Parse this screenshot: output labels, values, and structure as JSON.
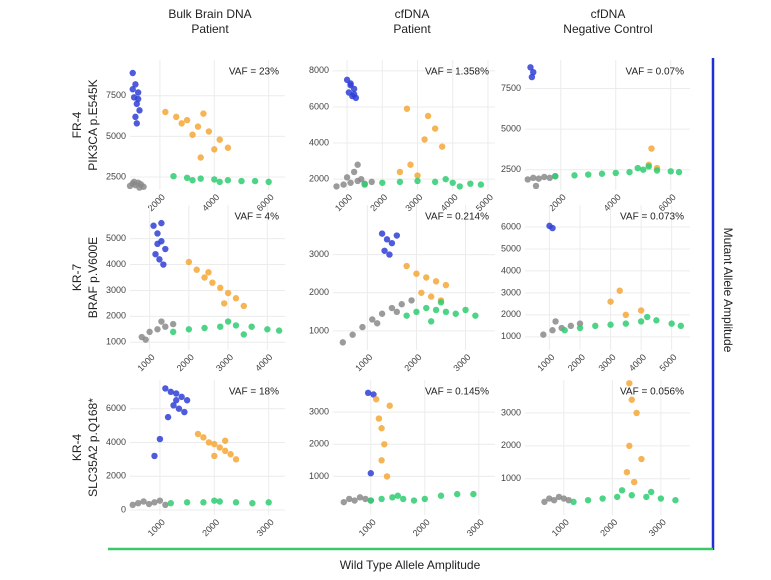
{
  "column_titles": [
    [
      "Bulk Brain DNA",
      "Patient"
    ],
    [
      "cfDNA",
      "Patient"
    ],
    [
      "cfDNA",
      "Negative Control"
    ]
  ],
  "row_labels": [
    [
      "FR-4",
      "PIK3CA p.E545K"
    ],
    [
      "KR-7",
      "BRAF p.V600E"
    ],
    [
      "KR-4",
      "SLC35A2 p.Q168*"
    ]
  ],
  "x_label": "Wild Type Allele Amplitude",
  "y_label": "Mutant Allele Amplitude",
  "chart_data": [
    {
      "type": "scatter",
      "annotation": "VAF = 23%",
      "grid": true,
      "xlim": [
        900,
        6600
      ],
      "xticks": [
        2000,
        4000,
        6000
      ],
      "ylim": [
        1700,
        9700
      ],
      "yticks": [
        2500,
        5000,
        7500
      ],
      "series": [
        {
          "color": "#2f3fd6",
          "x": [
            1000,
            1100,
            1200,
            1050,
            1150,
            1250,
            1100,
            1000,
            1200,
            1150
          ],
          "values": [
            8900,
            8200,
            7700,
            7400,
            7000,
            6600,
            6200,
            7900,
            7300,
            5800
          ]
        },
        {
          "color": "#f4a736",
          "x": [
            2200,
            2600,
            3000,
            3400,
            3800,
            4200,
            4500,
            3200,
            2800,
            3600,
            4000,
            3500
          ],
          "values": [
            6500,
            6200,
            6000,
            5600,
            5300,
            4800,
            4300,
            5100,
            5800,
            6400,
            4200,
            3700
          ]
        },
        {
          "color": "#8a8a8a",
          "x": [
            900,
            1000,
            1100,
            1200,
            1300,
            1400,
            1050,
            1250
          ],
          "values": [
            1950,
            2100,
            2000,
            2150,
            2050,
            1900,
            2200,
            1850
          ]
        },
        {
          "color": "#2ecc71",
          "x": [
            2500,
            3000,
            3500,
            4000,
            4500,
            5000,
            5500,
            6000,
            3200,
            4200
          ],
          "values": [
            2550,
            2450,
            2400,
            2350,
            2300,
            2250,
            2250,
            2200,
            2300,
            2200
          ]
        }
      ]
    },
    {
      "type": "scatter",
      "annotation": "VAF = 1.358%",
      "grid": true,
      "xlim": [
        600,
        5200
      ],
      "xticks": [
        1000,
        2000,
        3000,
        4000,
        5000
      ],
      "ylim": [
        1400,
        8600
      ],
      "yticks": [
        2000,
        4000,
        6000,
        8000
      ],
      "series": [
        {
          "color": "#2f3fd6",
          "x": [
            1000,
            1100,
            1200,
            1050,
            1150,
            1250,
            1100,
            1200
          ],
          "values": [
            7500,
            7200,
            7000,
            6800,
            6600,
            6500,
            7300,
            6700
          ]
        },
        {
          "color": "#f4a736",
          "x": [
            2700,
            3300,
            3500,
            3200,
            3700,
            2800,
            2500,
            3000
          ],
          "values": [
            5900,
            5500,
            4800,
            4200,
            3800,
            2800,
            2400,
            2200
          ]
        },
        {
          "color": "#8a8a8a",
          "x": [
            700,
            900,
            1100,
            1300,
            1500,
            1700,
            1000,
            1200,
            1400,
            1300
          ],
          "values": [
            1600,
            1700,
            1800,
            1900,
            1750,
            1850,
            2100,
            2400,
            2000,
            2800
          ]
        },
        {
          "color": "#2ecc71",
          "x": [
            1500,
            2000,
            2500,
            3000,
            3500,
            4000,
            4500,
            4800,
            3800,
            4200
          ],
          "values": [
            1700,
            1800,
            1850,
            1900,
            1850,
            1800,
            1750,
            1700,
            2000,
            1600
          ]
        }
      ]
    },
    {
      "type": "scatter",
      "annotation": "VAF = 0.07%",
      "grid": true,
      "xlim": [
        700,
        6700
      ],
      "xticks": [
        2000,
        4000,
        6000
      ],
      "ylim": [
        1250,
        9250
      ],
      "yticks": [
        2500,
        5000,
        7500
      ],
      "series": [
        {
          "color": "#2f3fd6",
          "x": [
            900,
            1000,
            950
          ],
          "values": [
            8800,
            8500,
            8200
          ]
        },
        {
          "color": "#f4a736",
          "x": [
            5300,
            5200,
            5500
          ],
          "values": [
            3800,
            2800,
            2600
          ]
        },
        {
          "color": "#8a8a8a",
          "x": [
            800,
            1000,
            1200,
            1400,
            1600,
            1800,
            1100
          ],
          "values": [
            1900,
            2000,
            1950,
            2050,
            2000,
            2100,
            1500
          ]
        },
        {
          "color": "#2ecc71",
          "x": [
            1800,
            2500,
            3000,
            3500,
            4000,
            4500,
            5000,
            5500,
            6000,
            6300,
            4800,
            5200
          ],
          "values": [
            2100,
            2150,
            2200,
            2250,
            2300,
            2350,
            2500,
            2450,
            2400,
            2350,
            2600,
            2700
          ]
        }
      ]
    },
    {
      "type": "scatter",
      "annotation": "VAF = 4%",
      "grid": true,
      "xlim": [
        500,
        4450
      ],
      "xticks": [
        1000,
        2000,
        3000,
        4000
      ],
      "ylim": [
        700,
        6300
      ],
      "yticks": [
        1000,
        2000,
        3000,
        4000,
        5000
      ],
      "series": [
        {
          "color": "#2f3fd6",
          "x": [
            1100,
            1200,
            1300,
            1400,
            1150,
            1250,
            1350,
            1200,
            1300
          ],
          "values": [
            5500,
            5200,
            4900,
            4600,
            4400,
            4200,
            4000,
            4800,
            5600
          ]
        },
        {
          "color": "#f4a736",
          "x": [
            2000,
            2200,
            2400,
            2600,
            2800,
            3000,
            3200,
            3400,
            2500,
            2900
          ],
          "values": [
            4100,
            3800,
            3500,
            3300,
            3100,
            2900,
            2700,
            2400,
            3700,
            2500
          ]
        },
        {
          "color": "#8a8a8a",
          "x": [
            800,
            1000,
            1200,
            1400,
            1600,
            900,
            1300
          ],
          "values": [
            1200,
            1400,
            1500,
            1600,
            1700,
            1100,
            1800
          ]
        },
        {
          "color": "#2ecc71",
          "x": [
            1600,
            2000,
            2400,
            2800,
            3200,
            3600,
            4000,
            4300,
            3000,
            3400
          ],
          "values": [
            1400,
            1500,
            1550,
            1600,
            1650,
            1600,
            1500,
            1450,
            1800,
            1300
          ]
        }
      ]
    },
    {
      "type": "scatter",
      "annotation": "VAF = 0.214%",
      "grid": true,
      "xlim": [
        300,
        3600
      ],
      "xticks": [
        1000,
        2000,
        3000
      ],
      "ylim": [
        500,
        4300
      ],
      "yticks": [
        1000,
        2000,
        3000
      ],
      "series": [
        {
          "color": "#2f3fd6",
          "x": [
            1300,
            1400,
            1500,
            1600,
            1450,
            1350
          ],
          "values": [
            3550,
            3400,
            3300,
            3500,
            3000,
            3100
          ]
        },
        {
          "color": "#f4a736",
          "x": [
            1800,
            2000,
            2200,
            2400,
            2600,
            2100,
            2300,
            2500
          ],
          "values": [
            2700,
            2500,
            2400,
            2300,
            2200,
            2000,
            1900,
            1800
          ]
        },
        {
          "color": "#8a8a8a",
          "x": [
            500,
            700,
            900,
            1100,
            1300,
            1500,
            1700,
            1900,
            1200,
            1600
          ],
          "values": [
            700,
            900,
            1100,
            1300,
            1450,
            1600,
            1700,
            1800,
            1200,
            1500
          ]
        },
        {
          "color": "#2ecc71",
          "x": [
            1800,
            2000,
            2200,
            2400,
            2600,
            2800,
            3000,
            3200,
            2500,
            2300
          ],
          "values": [
            1400,
            1500,
            1600,
            1550,
            1500,
            1450,
            1550,
            1400,
            1750,
            1250
          ]
        }
      ]
    },
    {
      "type": "scatter",
      "annotation": "VAF = 0.073%",
      "grid": true,
      "xlim": [
        200,
        5600
      ],
      "xticks": [
        1000,
        2000,
        3000,
        4000,
        5000
      ],
      "ylim": [
        400,
        7000
      ],
      "yticks": [
        1000,
        2000,
        3000,
        4000,
        5000,
        6000
      ],
      "series": [
        {
          "color": "#2f3fd6",
          "x": [
            1000,
            1100
          ],
          "values": [
            6050,
            5950
          ]
        },
        {
          "color": "#f4a736",
          "x": [
            3300,
            3000,
            4000,
            3500
          ],
          "values": [
            3100,
            2600,
            2200,
            2000
          ]
        },
        {
          "color": "#8a8a8a",
          "x": [
            800,
            1100,
            1400,
            1700,
            2000,
            1200
          ],
          "values": [
            1100,
            1300,
            1400,
            1500,
            1600,
            1700
          ]
        },
        {
          "color": "#2ecc71",
          "x": [
            1500,
            2000,
            2500,
            3000,
            3500,
            4000,
            4500,
            5000,
            5300,
            4200
          ],
          "values": [
            1300,
            1400,
            1500,
            1550,
            1600,
            1700,
            1750,
            1600,
            1500,
            1900
          ]
        }
      ]
    },
    {
      "type": "scatter",
      "annotation": "VAF = 18%",
      "grid": true,
      "xlim": [
        450,
        3300
      ],
      "xticks": [
        1000,
        2000,
        3000
      ],
      "ylim": [
        -300,
        7700
      ],
      "yticks": [
        0,
        2000,
        4000,
        6000
      ],
      "series": [
        {
          "color": "#2f3fd6",
          "x": [
            1100,
            1200,
            1300,
            1400,
            1500,
            1250,
            1350,
            1450,
            1150,
            1300,
            900,
            1000
          ],
          "values": [
            7200,
            7000,
            6900,
            6700,
            6500,
            6200,
            6000,
            5800,
            5500,
            6500,
            3200,
            4200
          ]
        },
        {
          "color": "#f4a736",
          "x": [
            1700,
            1800,
            1900,
            2000,
            2100,
            2200,
            2300,
            2400,
            2000,
            2200
          ],
          "values": [
            4500,
            4300,
            4000,
            3900,
            3700,
            3500,
            3300,
            3000,
            3200,
            4100
          ]
        },
        {
          "color": "#8a8a8a",
          "x": [
            500,
            600,
            700,
            800,
            900,
            1000,
            1100
          ],
          "values": [
            300,
            400,
            500,
            350,
            450,
            550,
            300
          ]
        },
        {
          "color": "#2ecc71",
          "x": [
            1200,
            1500,
            1800,
            2100,
            2400,
            2700,
            3000,
            2000
          ],
          "values": [
            400,
            450,
            450,
            500,
            450,
            400,
            450,
            550
          ]
        }
      ]
    },
    {
      "type": "scatter",
      "annotation": "VAF = 0.145%",
      "grid": true,
      "xlim": [
        300,
        3300
      ],
      "xticks": [
        1000,
        2000,
        3000
      ],
      "ylim": [
        -200,
        4000
      ],
      "yticks": [
        1000,
        2000,
        3000
      ],
      "series": [
        {
          "color": "#2f3fd6",
          "x": [
            950,
            1050,
            1000
          ],
          "values": [
            3600,
            3550,
            1100
          ]
        },
        {
          "color": "#f4a736",
          "x": [
            1100,
            1150,
            1200,
            1250,
            1200,
            1300,
            1350
          ],
          "values": [
            3400,
            2800,
            2500,
            2000,
            1500,
            1000,
            3200
          ]
        },
        {
          "color": "#8a8a8a",
          "x": [
            500,
            600,
            700,
            800,
            900,
            1000
          ],
          "values": [
            200,
            300,
            250,
            350,
            300,
            250
          ]
        },
        {
          "color": "#2ecc71",
          "x": [
            1000,
            1200,
            1400,
            1600,
            1800,
            2000,
            2300,
            2600,
            2900,
            1500
          ],
          "values": [
            250,
            300,
            350,
            300,
            250,
            300,
            400,
            450,
            450,
            400
          ]
        }
      ]
    },
    {
      "type": "scatter",
      "annotation": "VAF = 0.056%",
      "grid": true,
      "xlim": [
        200,
        3600
      ],
      "xticks": [
        1000,
        2000,
        3000
      ],
      "ylim": [
        -100,
        4000
      ],
      "yticks": [
        1000,
        2000,
        3000
      ],
      "series": [
        {
          "color": "#f4a736",
          "x": [
            2350,
            2400,
            2500,
            2350,
            2600,
            2300,
            2450
          ],
          "values": [
            3900,
            3400,
            3000,
            2000,
            1600,
            1200,
            900
          ]
        },
        {
          "color": "#8a8a8a",
          "x": [
            600,
            700,
            800,
            900,
            1000,
            1100
          ],
          "values": [
            300,
            400,
            350,
            450,
            400,
            350
          ]
        },
        {
          "color": "#2ecc71",
          "x": [
            1200,
            1500,
            1800,
            2100,
            2400,
            2700,
            3000,
            3300,
            2200,
            2800
          ],
          "values": [
            300,
            350,
            400,
            450,
            500,
            450,
            400,
            350,
            650,
            600
          ]
        }
      ]
    }
  ]
}
